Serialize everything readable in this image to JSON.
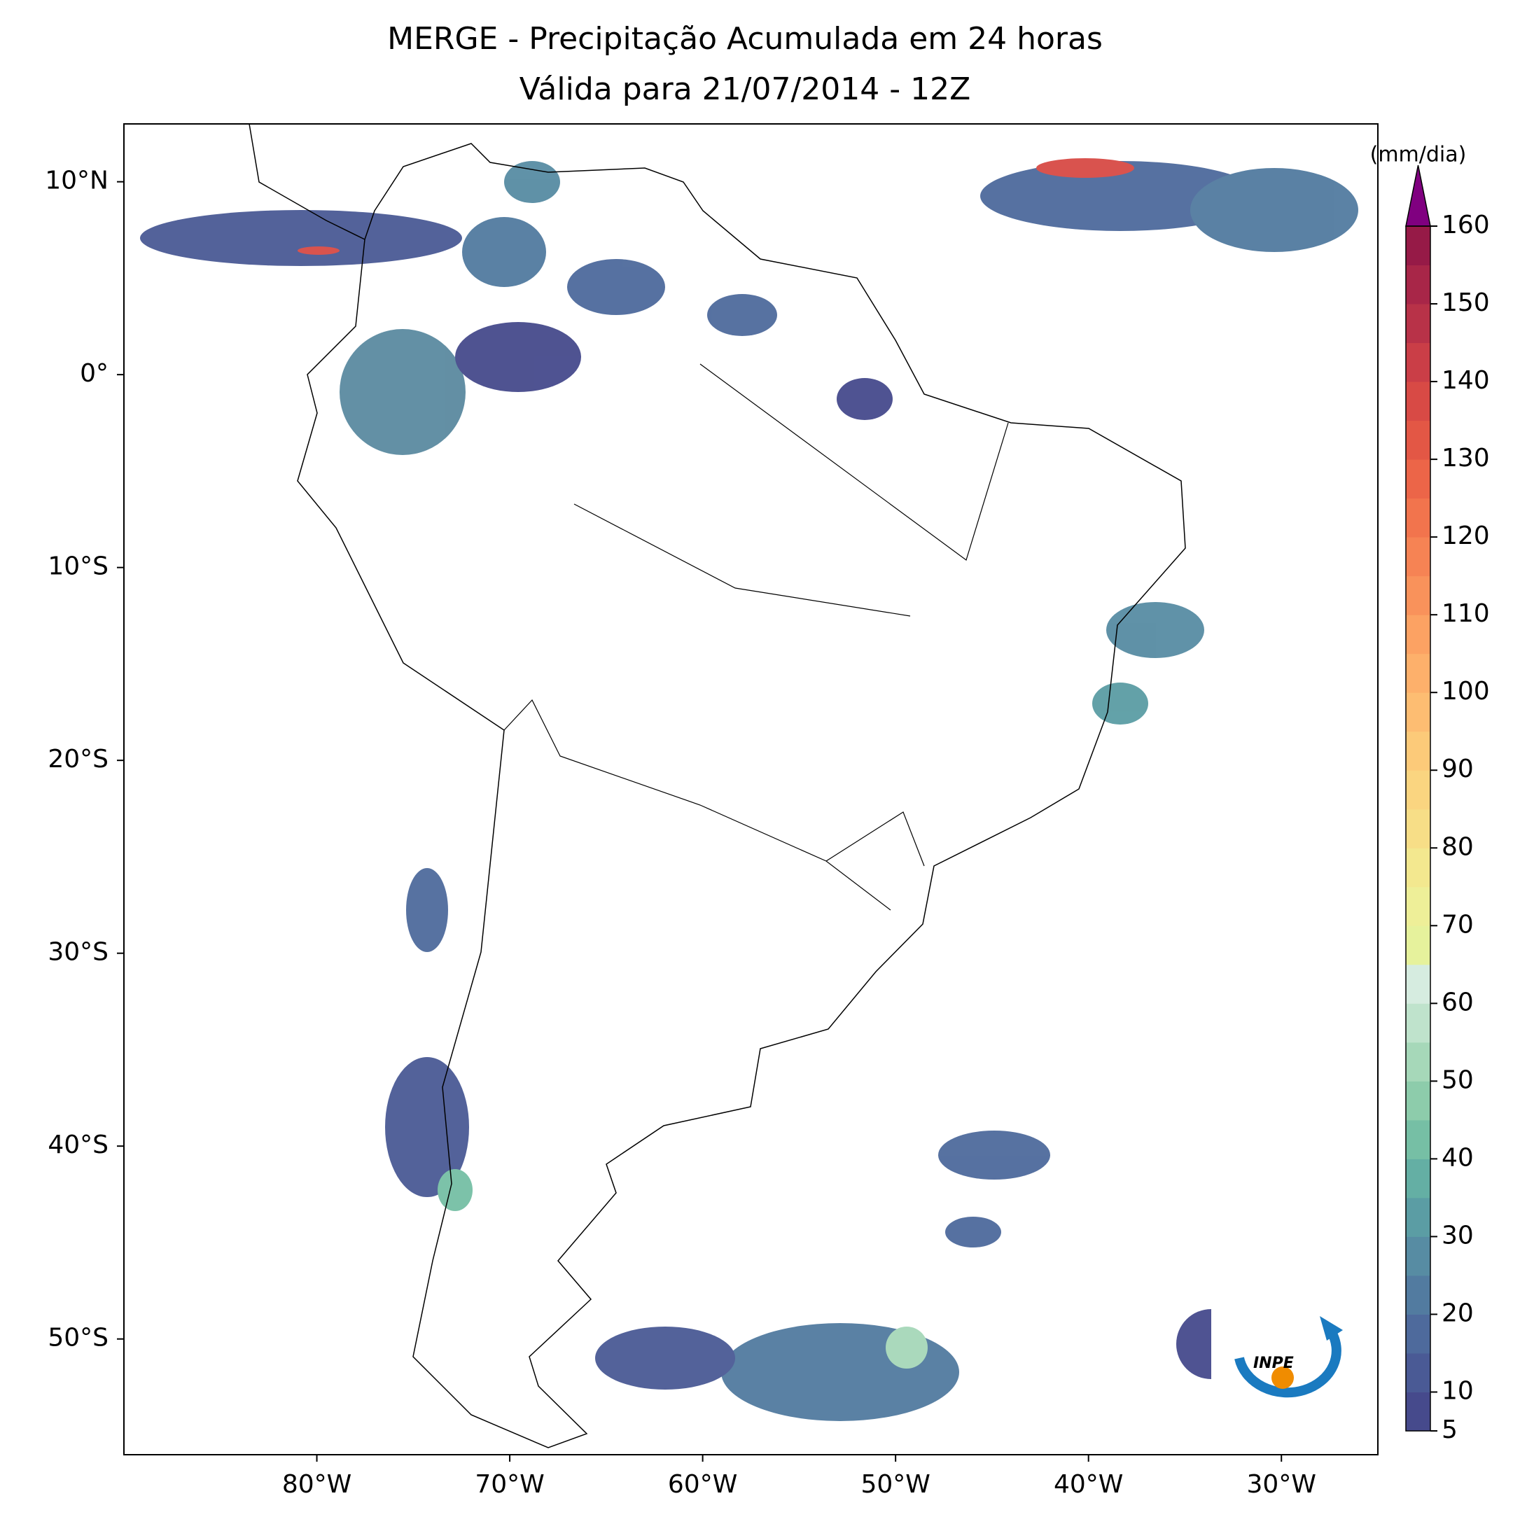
{
  "chart_data": {
    "type": "precipitation_map",
    "title": "MERGE - Precipitação Acumulada em 24 horas",
    "subtitle": "Válida para 21/07/2014 - 12Z",
    "xlim": [
      -90,
      -25
    ],
    "ylim": [
      -56,
      13
    ],
    "xticks": [
      {
        "value": -80,
        "label": "80°W"
      },
      {
        "value": -70,
        "label": "70°W"
      },
      {
        "value": -60,
        "label": "60°W"
      },
      {
        "value": -50,
        "label": "50°W"
      },
      {
        "value": -40,
        "label": "40°W"
      },
      {
        "value": -30,
        "label": "30°W"
      }
    ],
    "yticks": [
      {
        "value": 10,
        "label": "10°N"
      },
      {
        "value": 0,
        "label": "0°"
      },
      {
        "value": -10,
        "label": "10°S"
      },
      {
        "value": -20,
        "label": "20°S"
      },
      {
        "value": -30,
        "label": "30°S"
      },
      {
        "value": -40,
        "label": "40°S"
      },
      {
        "value": -50,
        "label": "50°S"
      }
    ],
    "colorbar": {
      "label": "(mm/dia)",
      "lim": [
        5,
        160
      ],
      "ticks": [
        5,
        10,
        20,
        30,
        40,
        50,
        60,
        70,
        80,
        90,
        100,
        110,
        120,
        130,
        140,
        150,
        160
      ],
      "bounds": [
        5,
        10,
        15,
        20,
        25,
        30,
        35,
        40,
        45,
        50,
        55,
        60,
        65,
        70,
        75,
        80,
        85,
        90,
        95,
        100,
        105,
        110,
        115,
        120,
        125,
        130,
        135,
        140,
        145,
        150,
        155,
        160
      ],
      "colors": [
        "#464a8c",
        "#4a5a95",
        "#4e6a9c",
        "#527ba0",
        "#578ca3",
        "#5b9da4",
        "#64afa4",
        "#76bfa5",
        "#8dccab",
        "#a6d8b9",
        "#bfe3cc",
        "#d6ece0",
        "#e6f29c",
        "#eeef98",
        "#f3e88f",
        "#f7de87",
        "#fad580",
        "#fcca79",
        "#fdbd72",
        "#fdb06b",
        "#fca263",
        "#f9925b",
        "#f68354",
        "#f2744d",
        "#ec6548",
        "#e35745",
        "#d84a45",
        "#ca3e47",
        "#b83248",
        "#a82648",
        "#961a47"
      ],
      "extend_color": "#800080"
    },
    "logo_text": "INPE"
  }
}
